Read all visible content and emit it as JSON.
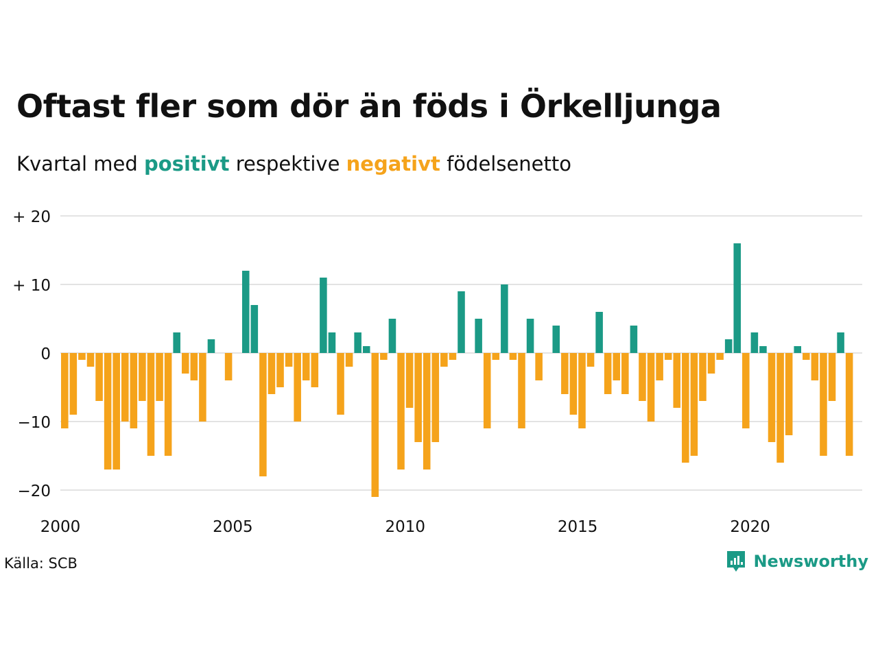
{
  "title": "Oftast fler som dör än föds i Örkelljunga",
  "subtitle": {
    "prefix": "Kvartal med",
    "positive": "positivt",
    "middle": "respektive",
    "negative": "negativt",
    "suffix": "födelsenetto"
  },
  "source": "Källa: SCB",
  "brand": {
    "name": "Newsworthy",
    "icon": "newsworthy-logo-icon"
  },
  "colors": {
    "positive": "#1b9a86",
    "negative": "#f5a31b",
    "grid": "#e3e3e3",
    "text": "#111111"
  },
  "chart_data": {
    "type": "bar",
    "title": "Oftast fler som dör än föds i Örkelljunga",
    "subtitle": "Kvartal med positivt respektive negativt födelsenetto",
    "xlabel": "",
    "ylabel": "",
    "x_start": 2000,
    "periods_per_year": 4,
    "ylim": [
      -22,
      20
    ],
    "xlim": [
      2000,
      2023.25
    ],
    "y_ticks": [
      20,
      10,
      0,
      -10,
      -20
    ],
    "y_tick_labels": [
      "+ 20",
      "+ 10",
      "0",
      "−10",
      "−20"
    ],
    "x_ticks": [
      2000,
      2005,
      2010,
      2015,
      2020
    ],
    "x_tick_labels": [
      "2000",
      "2005",
      "2010",
      "2015",
      "2020"
    ],
    "grid": true,
    "values": [
      -11,
      -9,
      -1,
      -2,
      -7,
      -17,
      -17,
      -10,
      -11,
      -7,
      -15,
      -7,
      -15,
      3,
      -3,
      -4,
      -10,
      2,
      0,
      -4,
      0,
      12,
      7,
      -18,
      -6,
      -5,
      -2,
      -10,
      -4,
      -5,
      11,
      3,
      -9,
      -2,
      3,
      1,
      -21,
      -1,
      5,
      -17,
      -8,
      -13,
      -17,
      -13,
      -2,
      -1,
      9,
      0,
      5,
      -11,
      -1,
      10,
      -1,
      -11,
      5,
      -4,
      0,
      4,
      -6,
      -9,
      -11,
      -2,
      6,
      -6,
      -4,
      -6,
      4,
      -7,
      -10,
      -4,
      -1,
      -8,
      -16,
      -15,
      -7,
      -3,
      -1,
      2,
      16,
      -11,
      3,
      1,
      -13,
      -16,
      -12,
      1,
      -1,
      -4,
      -15,
      -7,
      3,
      -15
    ]
  }
}
